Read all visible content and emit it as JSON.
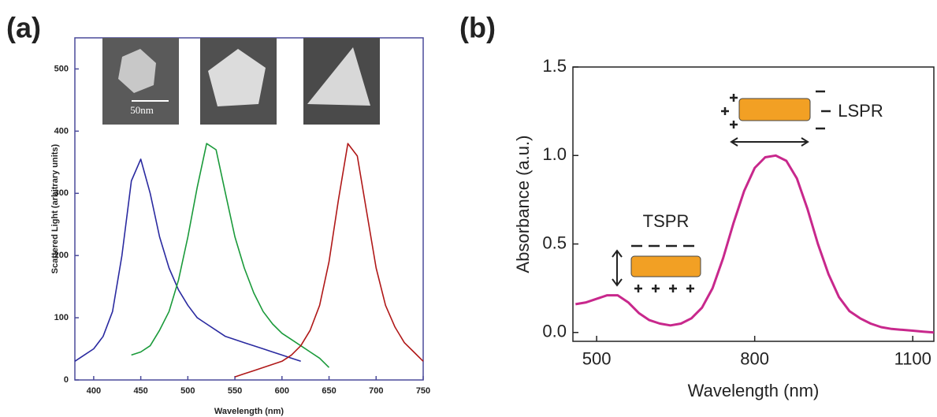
{
  "chart_data": [
    {
      "type": "line",
      "panel": "(a)",
      "x_label": "Wavelength (nm)",
      "y_label": "Scattered Light (arbitrary units)",
      "annotations": [
        "50nm"
      ],
      "x": [
        380,
        390,
        400,
        410,
        420,
        430,
        440,
        450,
        460,
        470,
        480,
        490,
        500,
        510,
        520,
        530,
        540,
        550,
        560,
        570,
        580,
        590,
        600,
        610,
        620,
        630,
        640,
        650,
        660,
        670,
        680,
        690,
        700,
        710,
        720,
        730,
        740,
        750
      ],
      "series": [
        {
          "color": "#2a2aa0",
          "values": [
            30,
            40,
            50,
            70,
            110,
            200,
            320,
            355,
            300,
            230,
            180,
            145,
            120,
            100,
            90,
            80,
            70,
            65,
            60,
            55,
            50,
            45,
            40,
            35,
            30,
            null,
            null,
            null,
            null,
            null,
            null,
            null,
            null,
            null,
            null,
            null,
            null,
            null
          ]
        },
        {
          "color": "#1a9a3a",
          "values": [
            null,
            null,
            null,
            null,
            null,
            null,
            40,
            45,
            55,
            80,
            110,
            160,
            230,
            310,
            380,
            370,
            300,
            230,
            180,
            140,
            110,
            90,
            75,
            65,
            55,
            45,
            35,
            20,
            null,
            null,
            null,
            null,
            null,
            null,
            null,
            null,
            null,
            null
          ]
        },
        {
          "color": "#b01818",
          "values": [
            null,
            null,
            null,
            null,
            null,
            null,
            null,
            null,
            null,
            null,
            null,
            null,
            null,
            null,
            null,
            null,
            null,
            5,
            10,
            15,
            20,
            25,
            30,
            40,
            55,
            80,
            120,
            190,
            290,
            380,
            360,
            270,
            180,
            120,
            85,
            60,
            45,
            30
          ]
        }
      ],
      "xlim": [
        380,
        750
      ],
      "xticks": [
        400,
        450,
        500,
        550,
        600,
        650,
        700,
        750
      ],
      "ylim": [
        0,
        550
      ],
      "yticks": [
        0,
        100,
        200,
        300,
        400,
        500
      ]
    },
    {
      "type": "line",
      "panel": "(b)",
      "x_label": "Wavelength (nm)",
      "y_label": "Absorbance (a.u.)",
      "annotations": [
        "TSPR",
        "LSPR"
      ],
      "color": "#c8288c",
      "x": [
        460,
        480,
        500,
        520,
        540,
        560,
        580,
        600,
        620,
        640,
        660,
        680,
        700,
        720,
        740,
        760,
        780,
        800,
        820,
        840,
        860,
        880,
        900,
        920,
        940,
        960,
        980,
        1000,
        1020,
        1040,
        1060,
        1080,
        1100,
        1120,
        1140
      ],
      "values": [
        0.16,
        0.17,
        0.19,
        0.21,
        0.21,
        0.17,
        0.11,
        0.07,
        0.05,
        0.04,
        0.05,
        0.08,
        0.14,
        0.25,
        0.42,
        0.62,
        0.8,
        0.93,
        0.99,
        1.0,
        0.97,
        0.87,
        0.7,
        0.5,
        0.33,
        0.2,
        0.12,
        0.08,
        0.05,
        0.03,
        0.02,
        0.015,
        0.01,
        0.005,
        0.0
      ],
      "xlim": [
        455,
        1140
      ],
      "xticks": [
        500,
        800,
        1100
      ],
      "ylim": [
        -0.05,
        1.5
      ],
      "yticks": [
        {
          "value": 0,
          "label": "0.0"
        },
        0.5,
        {
          "value": 1,
          "label": "1.0"
        },
        1.5
      ]
    }
  ]
}
